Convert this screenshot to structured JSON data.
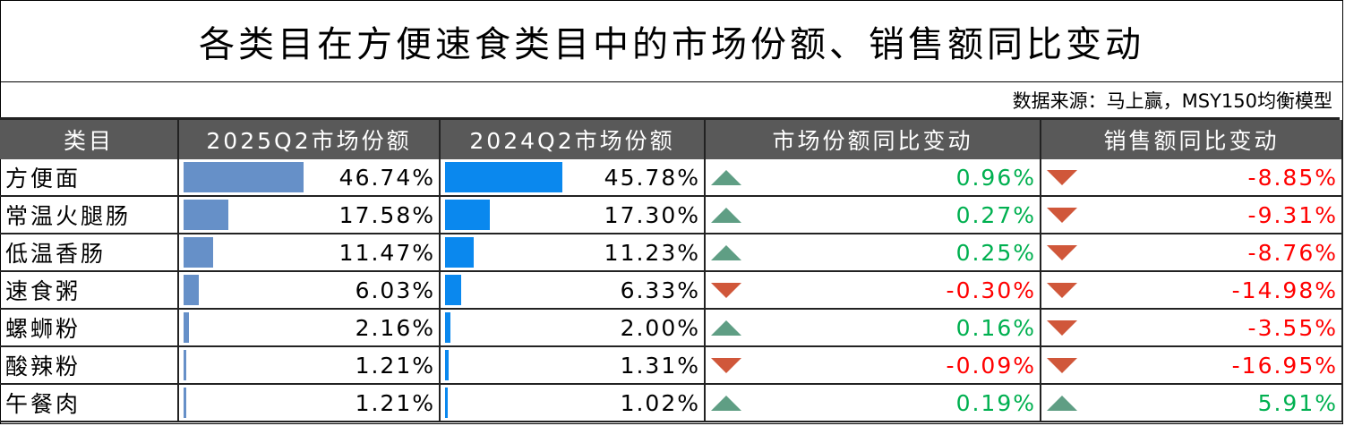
{
  "title": "各类目在方便速食类目中的市场份额、销售额同比变动",
  "source": "数据来源：马上赢，MSY150均衡模型",
  "colors": {
    "header_bg": "#595959",
    "bar_2025": "#6690C8",
    "bar_2024": "#0A88EE",
    "up": "#5F9E84",
    "down": "#D0573A",
    "positive_text": "#00B050",
    "negative_text": "#FF0000"
  },
  "columns": [
    "类目",
    "2025Q2市场份额",
    "2024Q2市场份额",
    "市场份额同比变动",
    "销售额同比变动"
  ],
  "rows": [
    {
      "name": "方便面",
      "s2025": "46.74%",
      "s2024": "45.78%",
      "share_change": "0.96%",
      "sales_change": "-8.85%",
      "v2025": 46.74,
      "v2024": 45.78,
      "share_dir": "up",
      "sales_dir": "down"
    },
    {
      "name": "常温火腿肠",
      "s2025": "17.58%",
      "s2024": "17.30%",
      "share_change": "0.27%",
      "sales_change": "-9.31%",
      "v2025": 17.58,
      "v2024": 17.3,
      "share_dir": "up",
      "sales_dir": "down"
    },
    {
      "name": "低温香肠",
      "s2025": "11.47%",
      "s2024": "11.23%",
      "share_change": "0.25%",
      "sales_change": "-8.76%",
      "v2025": 11.47,
      "v2024": 11.23,
      "share_dir": "up",
      "sales_dir": "down"
    },
    {
      "name": "速食粥",
      "s2025": "6.03%",
      "s2024": "6.33%",
      "share_change": "-0.30%",
      "sales_change": "-14.98%",
      "v2025": 6.03,
      "v2024": 6.33,
      "share_dir": "down",
      "sales_dir": "down"
    },
    {
      "name": "螺蛳粉",
      "s2025": "2.16%",
      "s2024": "2.00%",
      "share_change": "0.16%",
      "sales_change": "-3.55%",
      "v2025": 2.16,
      "v2024": 2.0,
      "share_dir": "up",
      "sales_dir": "down"
    },
    {
      "name": "酸辣粉",
      "s2025": "1.21%",
      "s2024": "1.31%",
      "share_change": "-0.09%",
      "sales_change": "-16.95%",
      "v2025": 1.21,
      "v2024": 1.31,
      "share_dir": "down",
      "sales_dir": "down"
    },
    {
      "name": "午餐肉",
      "s2025": "1.21%",
      "s2024": "1.02%",
      "share_change": "0.19%",
      "sales_change": "5.91%",
      "v2025": 1.21,
      "v2024": 1.02,
      "share_dir": "up",
      "sales_dir": "up"
    }
  ]
}
